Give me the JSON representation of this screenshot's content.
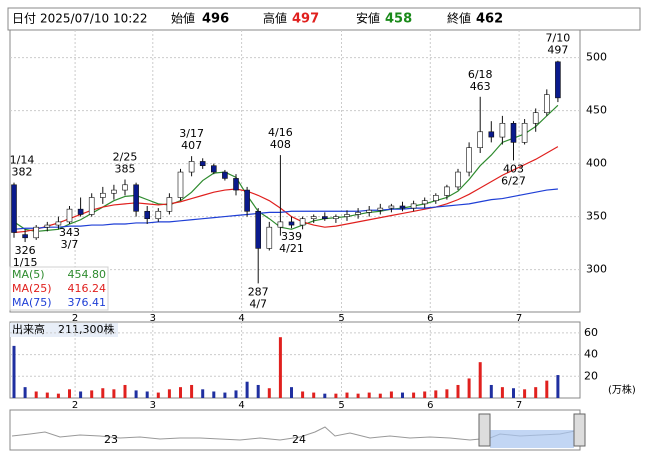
{
  "header": {
    "date_label": "日付",
    "datetime": "2025/07/10 10:22",
    "open_label": "始値",
    "open": 496,
    "high_label": "高値",
    "high": 497,
    "low_label": "安値",
    "low": 458,
    "close_label": "終値",
    "close": 462
  },
  "chart_data": {
    "type": "candlestick",
    "categories": [
      null,
      null,
      null,
      null,
      null,
      null,
      "2",
      null,
      null,
      null,
      null,
      null,
      null,
      "3",
      null,
      null,
      null,
      null,
      null,
      null,
      null,
      "4",
      null,
      null,
      null,
      null,
      null,
      null,
      null,
      null,
      "5",
      null,
      null,
      null,
      null,
      null,
      null,
      null,
      "6",
      null,
      null,
      null,
      null,
      null,
      null,
      null,
      "7",
      null,
      null,
      null
    ],
    "ohlc": [
      [
        380,
        382,
        330,
        335
      ],
      [
        333,
        338,
        326,
        330
      ],
      [
        330,
        342,
        328,
        340
      ],
      [
        340,
        345,
        336,
        342
      ],
      [
        342,
        350,
        338,
        345
      ],
      [
        345,
        360,
        343,
        357
      ],
      [
        357,
        368,
        350,
        352
      ],
      [
        352,
        372,
        350,
        368
      ],
      [
        368,
        378,
        362,
        372
      ],
      [
        372,
        380,
        366,
        375
      ],
      [
        375,
        385,
        370,
        380
      ],
      [
        380,
        382,
        350,
        355
      ],
      [
        355,
        360,
        343,
        348
      ],
      [
        348,
        358,
        345,
        355
      ],
      [
        355,
        372,
        352,
        368
      ],
      [
        368,
        395,
        365,
        392
      ],
      [
        392,
        407,
        388,
        402
      ],
      [
        402,
        405,
        395,
        398
      ],
      [
        398,
        400,
        390,
        392
      ],
      [
        392,
        394,
        384,
        386
      ],
      [
        386,
        390,
        370,
        375
      ],
      [
        375,
        378,
        350,
        355
      ],
      [
        355,
        358,
        287,
        320
      ],
      [
        320,
        345,
        318,
        340
      ],
      [
        340,
        408,
        332,
        345
      ],
      [
        345,
        350,
        339,
        342
      ],
      [
        342,
        350,
        338,
        348
      ],
      [
        348,
        352,
        344,
        350
      ],
      [
        350,
        354,
        346,
        348
      ],
      [
        348,
        352,
        344,
        350
      ],
      [
        350,
        356,
        346,
        352
      ],
      [
        352,
        358,
        348,
        354
      ],
      [
        354,
        360,
        350,
        356
      ],
      [
        356,
        362,
        352,
        358
      ],
      [
        358,
        362,
        354,
        360
      ],
      [
        360,
        364,
        355,
        358
      ],
      [
        358,
        365,
        355,
        362
      ],
      [
        362,
        368,
        358,
        365
      ],
      [
        365,
        372,
        362,
        370
      ],
      [
        370,
        380,
        366,
        378
      ],
      [
        378,
        395,
        375,
        392
      ],
      [
        392,
        420,
        388,
        415
      ],
      [
        415,
        463,
        410,
        430
      ],
      [
        430,
        440,
        420,
        425
      ],
      [
        425,
        445,
        418,
        438
      ],
      [
        438,
        440,
        403,
        420
      ],
      [
        420,
        442,
        418,
        438
      ],
      [
        438,
        452,
        430,
        448
      ],
      [
        448,
        470,
        445,
        465
      ],
      [
        496,
        497,
        458,
        462
      ]
    ],
    "up_color": "#ffffff",
    "down_color": "#0a1a8c",
    "lines": [
      {
        "name": "MA(5)",
        "last": "454.80",
        "color": "#2e8b2e",
        "values": [
          345,
          338,
          336,
          337,
          338,
          343,
          347,
          353,
          359,
          365,
          369,
          370,
          366,
          362,
          361,
          365,
          373,
          384,
          391,
          392,
          387,
          370,
          355,
          348,
          340,
          338,
          342,
          346,
          348,
          349,
          350,
          352,
          354,
          355,
          357,
          358,
          360,
          362,
          365,
          368,
          374,
          385,
          398,
          408,
          420,
          424,
          428,
          435,
          445,
          455
        ]
      },
      {
        "name": "MA(25)",
        "last": "416.24",
        "color": "#e0201e",
        "values": [
          335,
          336,
          338,
          341,
          344,
          348,
          352,
          356,
          359,
          361,
          362,
          363,
          362,
          361,
          362,
          364,
          367,
          370,
          373,
          375,
          376,
          374,
          370,
          365,
          358,
          350,
          345,
          342,
          340,
          341,
          343,
          345,
          347,
          349,
          351,
          353,
          355,
          357,
          359,
          362,
          366,
          371,
          377,
          383,
          389,
          394,
          399,
          404,
          410,
          416
        ]
      },
      {
        "name": "MA(75)",
        "last": "376.41",
        "color": "#1f3fd6",
        "values": [
          338,
          339,
          339,
          340,
          340,
          341,
          341,
          342,
          342,
          343,
          343,
          344,
          344,
          345,
          345,
          346,
          347,
          348,
          349,
          350,
          351,
          352,
          353,
          354,
          354,
          355,
          355,
          355,
          355,
          355,
          355,
          355,
          356,
          356,
          357,
          357,
          358,
          358,
          359,
          360,
          361,
          362,
          364,
          366,
          367,
          369,
          371,
          373,
          375,
          376
        ]
      }
    ],
    "annotations": [
      {
        "date": "1/14",
        "value": 382
      },
      {
        "date": "1/15",
        "value": 326
      },
      {
        "date": "2/25",
        "value": 385
      },
      {
        "date": "3/7",
        "value": 343
      },
      {
        "date": "3/17",
        "value": 407
      },
      {
        "date": "4/7",
        "value": 287
      },
      {
        "date": "4/16",
        "value": 408
      },
      {
        "date": "4/21",
        "value": 339
      },
      {
        "date": "6/18",
        "value": 463
      },
      {
        "date": "6/27",
        "value": 403
      },
      {
        "date": "7/10",
        "value": 497
      }
    ],
    "ylim": [
      260,
      526
    ],
    "yticks": [
      300,
      350,
      400,
      450,
      500
    ],
    "volume": {
      "label": "出来高",
      "last": "211,300株",
      "unit": "(万株)",
      "values": [
        48,
        10,
        6,
        5,
        4,
        8,
        6,
        7,
        9,
        8,
        12,
        7,
        6,
        5,
        8,
        10,
        12,
        8,
        6,
        5,
        7,
        15,
        12,
        9,
        56,
        10,
        6,
        5,
        4,
        4,
        5,
        4,
        5,
        4,
        6,
        5,
        5,
        6,
        7,
        8,
        12,
        18,
        33,
        12,
        10,
        9,
        8,
        10,
        16,
        21.13
      ],
      "up_color": "#e0201e",
      "down_color": "#1f2fa0",
      "ylim": [
        0,
        70
      ],
      "yticks": [
        20,
        40,
        60
      ]
    },
    "navigator": {
      "labels": [
        "23",
        "24"
      ]
    }
  }
}
